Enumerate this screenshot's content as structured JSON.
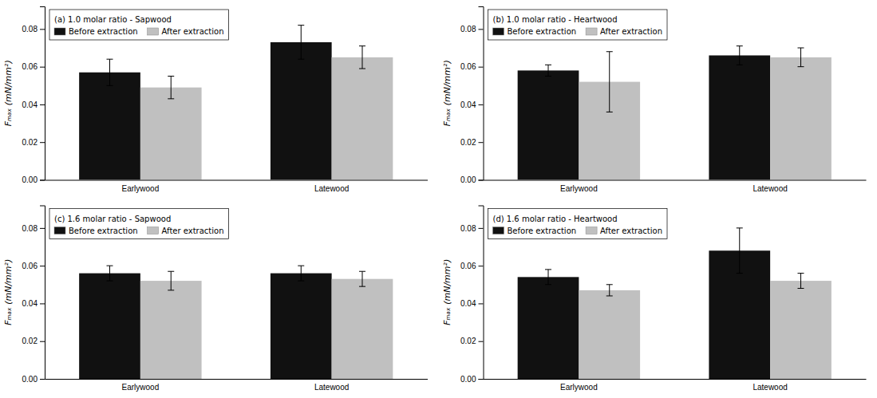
{
  "chart_data": [
    {
      "type": "bar",
      "title": "(a) 1.0 molar ratio - Sapwood",
      "categories": [
        "Earlywood",
        "Latewood"
      ],
      "series": [
        {
          "name": "Before extraction",
          "color": "#111111",
          "values": [
            0.057,
            0.073
          ],
          "errors": [
            0.007,
            0.009
          ]
        },
        {
          "name": "After extraction",
          "color": "#c0c0c0",
          "values": [
            0.049,
            0.065
          ],
          "errors": [
            0.006,
            0.006
          ]
        }
      ],
      "ylabel": "Fₘₐₓ (mN/mm²)",
      "ylim": [
        0.0,
        0.092
      ],
      "yticks": [
        {
          "value": 0.0,
          "label": "0.00"
        },
        0.02,
        0.04,
        0.06,
        0.08
      ],
      "grid": false,
      "legend": "upper left"
    },
    {
      "type": "bar",
      "title": "(b) 1.0 molar ratio - Heartwood",
      "categories": [
        "Earlywood",
        "Latewood"
      ],
      "series": [
        {
          "name": "Before extraction",
          "color": "#111111",
          "values": [
            0.058,
            0.066
          ],
          "errors": [
            0.003,
            0.005
          ]
        },
        {
          "name": "After extraction",
          "color": "#c0c0c0",
          "values": [
            0.052,
            0.065
          ],
          "errors": [
            0.016,
            0.005
          ]
        }
      ],
      "ylabel": "Fₘₐₓ (mN/mm²)",
      "ylim": [
        0.0,
        0.092
      ],
      "yticks": [
        {
          "value": 0.0,
          "label": "0.00"
        },
        0.02,
        0.04,
        0.06,
        0.08
      ],
      "grid": false,
      "legend": "upper left"
    },
    {
      "type": "bar",
      "title": "(c) 1.6 molar ratio - Sapwood",
      "categories": [
        "Earlywood",
        "Latewood"
      ],
      "series": [
        {
          "name": "Before extraction",
          "color": "#111111",
          "values": [
            0.056,
            0.056
          ],
          "errors": [
            0.004,
            0.004
          ]
        },
        {
          "name": "After extraction",
          "color": "#c0c0c0",
          "values": [
            0.052,
            0.053
          ],
          "errors": [
            0.005,
            0.004
          ]
        }
      ],
      "ylabel": "Fₘₐₓ (mN/mm²)",
      "ylim": [
        0.0,
        0.092
      ],
      "yticks": [
        {
          "value": 0.0,
          "label": "0.00"
        },
        0.02,
        0.04,
        0.06,
        0.08
      ],
      "grid": false,
      "legend": "upper left"
    },
    {
      "type": "bar",
      "title": "(d) 1.6 molar ratio - Heartwood",
      "categories": [
        "Earlywood",
        "Latewood"
      ],
      "series": [
        {
          "name": "Before extraction",
          "color": "#111111",
          "values": [
            0.054,
            0.068
          ],
          "errors": [
            0.004,
            0.012
          ]
        },
        {
          "name": "After extraction",
          "color": "#c0c0c0",
          "values": [
            0.047,
            0.052
          ],
          "errors": [
            0.003,
            0.004
          ]
        }
      ],
      "ylabel": "Fₘₐₓ (mN/mm²)",
      "ylim": [
        0.0,
        0.092
      ],
      "yticks": [
        {
          "value": 0.0,
          "label": "0.00"
        },
        0.02,
        0.04,
        0.06,
        0.08
      ],
      "grid": false,
      "legend": "upper left"
    }
  ]
}
